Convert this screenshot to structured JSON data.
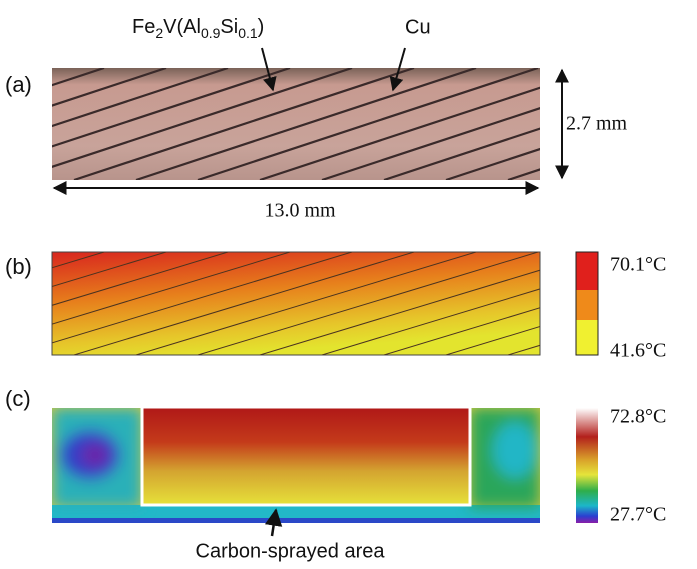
{
  "panel_a": {
    "label": "(a)",
    "material_label": [
      "Fe",
      "2",
      "V(Al",
      "0.9",
      "Si",
      "0.1",
      ")"
    ],
    "cu_label": "Cu",
    "height_label": "2.7 mm",
    "width_label": "13.0 mm"
  },
  "panel_b": {
    "label": "(b)",
    "scale_max": "70.1°C",
    "scale_min": "41.6°C"
  },
  "panel_c": {
    "label": "(c)",
    "scale_max": "72.8°C",
    "scale_min": "27.7°C",
    "area_label": "Carbon-sprayed area"
  }
}
